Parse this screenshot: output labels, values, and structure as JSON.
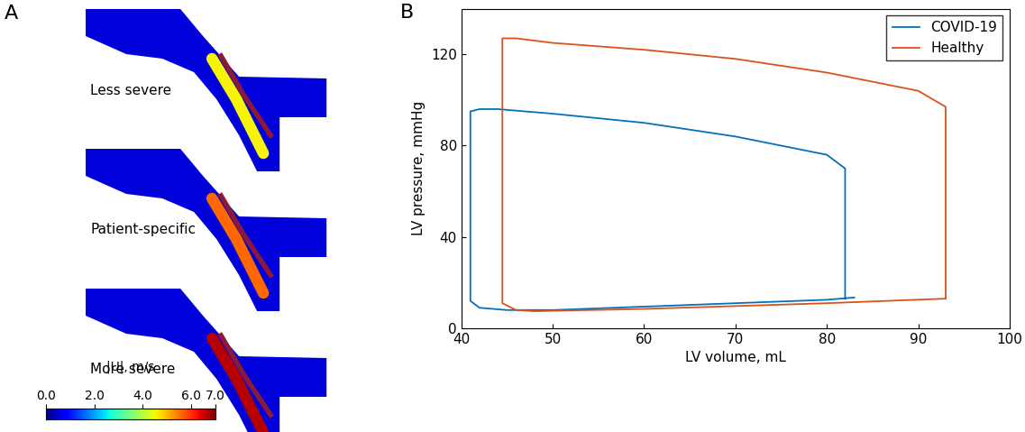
{
  "chart_data": [
    {
      "type": "flow_field",
      "panel": "A",
      "labels": [
        "Less severe",
        "Patient-specific",
        "More severe"
      ],
      "colorbar": {
        "label": "|U|, m/s",
        "range": [
          0,
          7
        ],
        "ticks": [
          {
            "value": 0,
            "label": "0.0"
          },
          {
            "value": 2,
            "label": "2.0"
          },
          {
            "value": 4,
            "label": "4.0"
          },
          {
            "value": 6,
            "label": "6.0"
          },
          {
            "value": 7,
            "label": "7.0"
          }
        ]
      }
    },
    {
      "type": "line",
      "panel": "B",
      "x_label": "LV volume, mL",
      "y_label": "LV pressure, mmHg",
      "xlim": [
        40,
        100
      ],
      "xticks": [
        40,
        50,
        60,
        70,
        80,
        90,
        100
      ],
      "ylim": [
        0,
        140
      ],
      "yticks": [
        0,
        40,
        80,
        120
      ],
      "legend": "upper right",
      "series": [
        {
          "name": "COVID-19",
          "color": "#0072bd",
          "x": [
            82,
            82,
            80,
            70,
            60,
            50,
            44,
            42,
            41,
            41,
            42,
            45,
            50,
            60,
            70,
            80,
            83
          ],
          "values": [
            13,
            70,
            76,
            84,
            90,
            94,
            96,
            96,
            95,
            12,
            9,
            8,
            8,
            9.5,
            11,
            12.5,
            13.5
          ]
        },
        {
          "name": "Healthy",
          "color": "#d95319",
          "x": [
            93,
            93,
            90,
            80,
            70,
            60,
            50,
            46,
            44.5,
            44.5,
            46,
            48,
            60,
            80,
            93
          ],
          "values": [
            13,
            97,
            104,
            112,
            118,
            122,
            125,
            127,
            127,
            11,
            8,
            7.5,
            8.5,
            11,
            13
          ]
        }
      ]
    }
  ]
}
